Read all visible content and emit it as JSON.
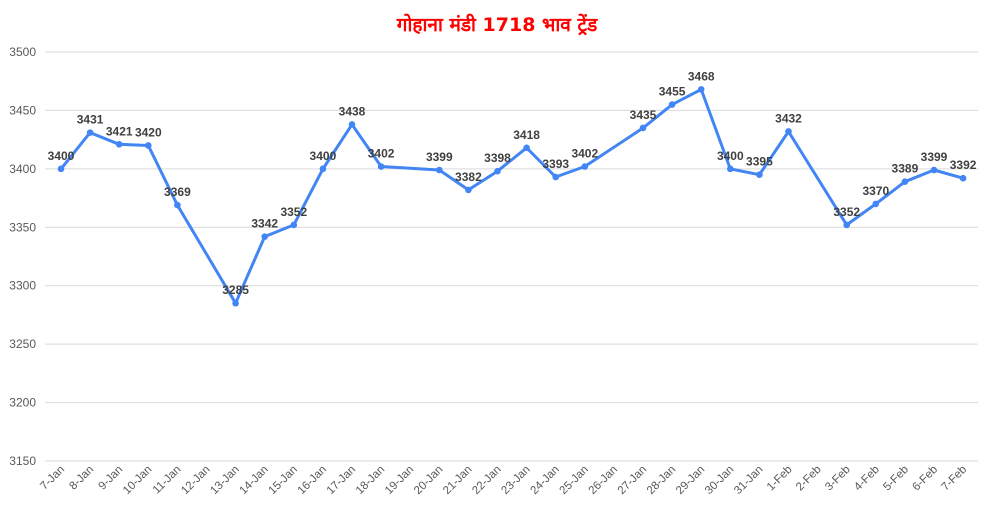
{
  "chart_data": {
    "type": "line",
    "title": "गोहाना मंडी 1718 भाव ट्रेंड",
    "xlabel": "",
    "ylabel": "",
    "ylim": [
      3150,
      3500
    ],
    "yticks": [
      3150,
      3200,
      3250,
      3300,
      3350,
      3400,
      3450,
      3500
    ],
    "grid": true,
    "legend": "none",
    "colors": {
      "title": "#ff0000",
      "line": "#4285f4",
      "grid": "#d9d9d9"
    },
    "categories": [
      "7-Jan",
      "8-Jan",
      "9-Jan",
      "10-Jan",
      "11-Jan",
      "12-Jan",
      "13-Jan",
      "14-Jan",
      "15-Jan",
      "16-Jan",
      "17-Jan",
      "18-Jan",
      "19-Jan",
      "20-Jan",
      "21-Jan",
      "22-Jan",
      "23-Jan",
      "24-Jan",
      "25-Jan",
      "26-Jan",
      "27-Jan",
      "28-Jan",
      "29-Jan",
      "30-Jan",
      "31-Jan",
      "1-Feb",
      "2-Feb",
      "3-Feb",
      "4-Feb",
      "5-Feb",
      "6-Feb",
      "7-Feb"
    ],
    "series": [
      {
        "values": [
          3400,
          3431,
          3421,
          3420,
          3369,
          null,
          3285,
          3342,
          3352,
          3400,
          3438,
          3402,
          null,
          3399,
          3382,
          3398,
          3418,
          3393,
          3402,
          null,
          3435,
          3455,
          3468,
          3400,
          3395,
          3432,
          null,
          3352,
          3370,
          3389,
          3399,
          3392
        ]
      }
    ]
  }
}
